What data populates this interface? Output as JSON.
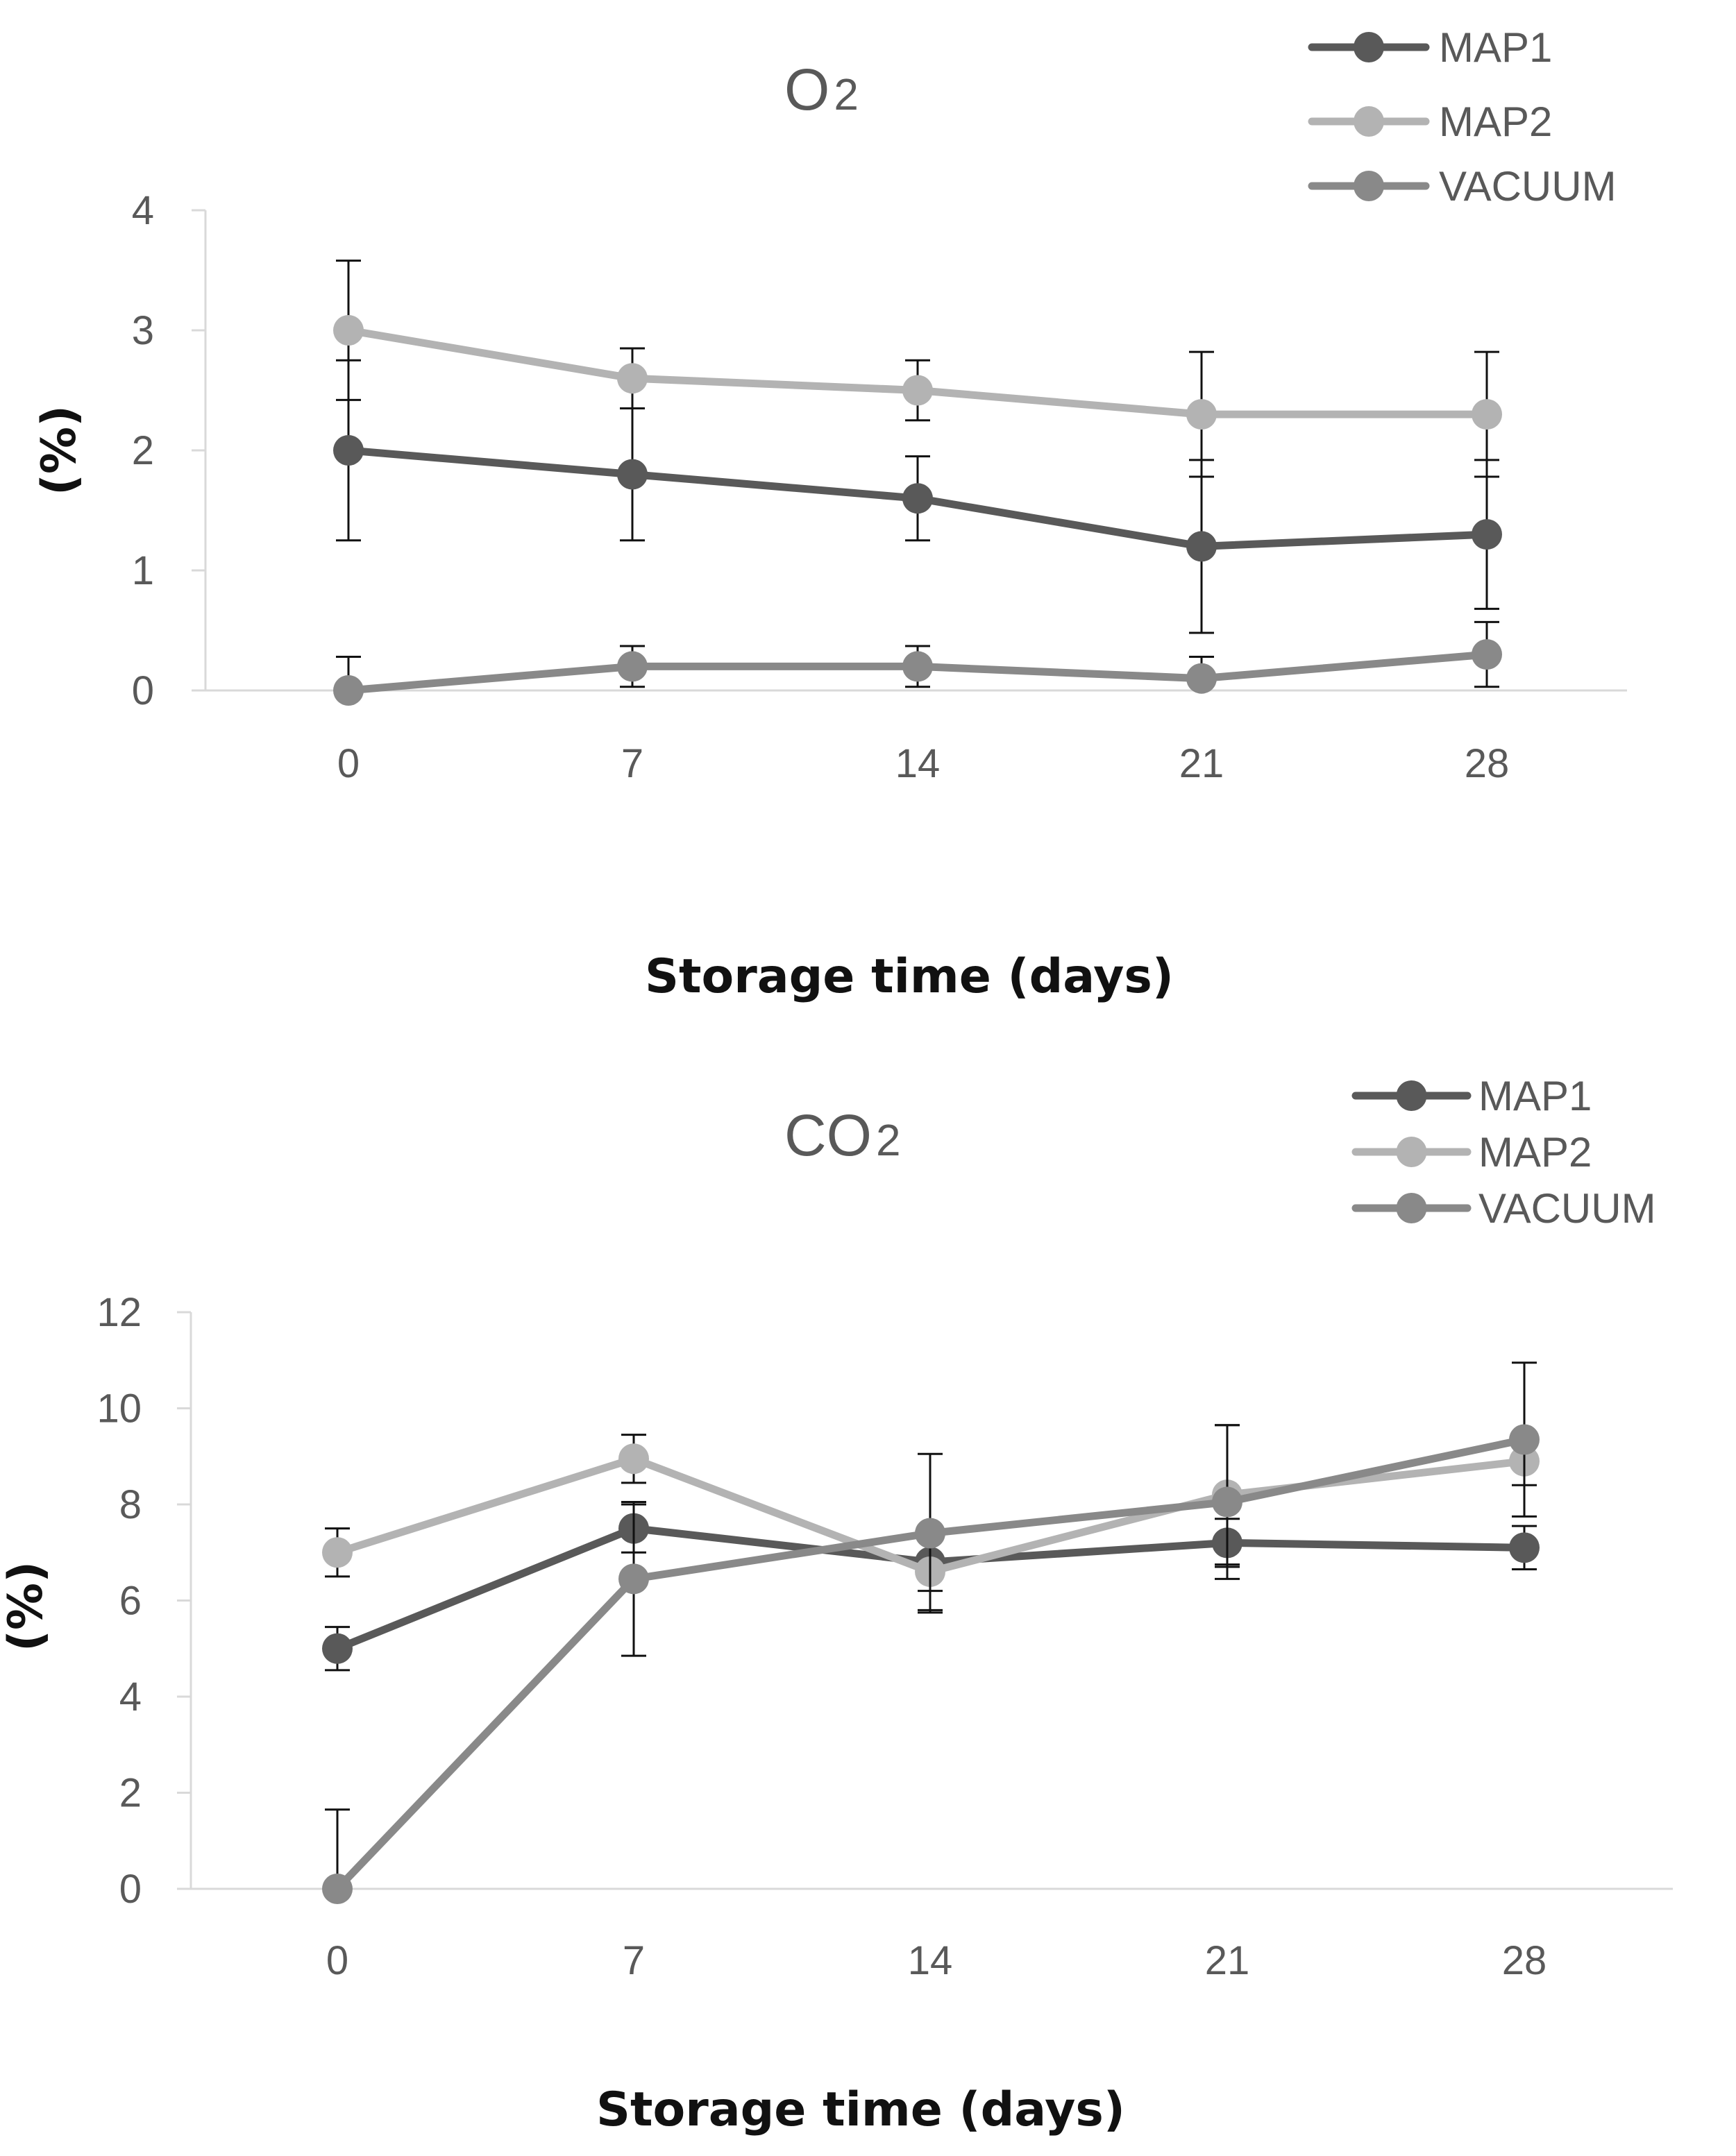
{
  "chart_data": [
    {
      "type": "line",
      "title": "O2",
      "title_main": "O",
      "title_sub": "2",
      "xlabel": "Storage time (days)",
      "ylabel": "(%)",
      "categories": [
        "0",
        "7",
        "14",
        "21",
        "28"
      ],
      "ylim": [
        0,
        4
      ],
      "yticks": [
        0,
        1,
        2,
        3,
        4
      ],
      "legend_position": "top-right",
      "series": [
        {
          "name": "MAP1",
          "color": "#595959",
          "values": [
            2.0,
            1.8,
            1.6,
            1.2,
            1.3
          ],
          "error": [
            0.75,
            0.55,
            0.35,
            0.72,
            0.62
          ]
        },
        {
          "name": "MAP2",
          "color": "#b3b3b3",
          "values": [
            3.0,
            2.6,
            2.5,
            2.3,
            2.3
          ],
          "error": [
            0.58,
            0.25,
            0.25,
            0.52,
            0.52
          ]
        },
        {
          "name": "VACUUM",
          "color": "#898989",
          "values": [
            0.0,
            0.2,
            0.2,
            0.1,
            0.3
          ],
          "error": [
            0.28,
            0.17,
            0.17,
            0.18,
            0.27
          ]
        }
      ]
    },
    {
      "type": "line",
      "title": "CO2",
      "title_main": "CO",
      "title_sub": "2",
      "xlabel": "Storage time (days)",
      "ylabel": "(%)",
      "categories": [
        "0",
        "7",
        "14",
        "21",
        "28"
      ],
      "ylim": [
        0,
        12
      ],
      "yticks": [
        0,
        2,
        4,
        6,
        8,
        10,
        12
      ],
      "legend_position": "top-right",
      "series": [
        {
          "name": "MAP1",
          "color": "#595959",
          "values": [
            5.0,
            7.5,
            6.8,
            7.2,
            7.1
          ],
          "error": [
            0.45,
            0.5,
            0.6,
            0.5,
            0.45
          ]
        },
        {
          "name": "MAP2",
          "color": "#b3b3b3",
          "values": [
            7.0,
            8.95,
            6.6,
            8.2,
            8.9
          ],
          "error": [
            0.5,
            0.5,
            0.8,
            1.45,
            0.5
          ]
        },
        {
          "name": "VACUUM",
          "color": "#898989",
          "values": [
            0.0,
            6.45,
            7.4,
            8.05,
            9.35
          ],
          "error": [
            1.65,
            1.6,
            1.65,
            1.6,
            1.6
          ]
        }
      ]
    }
  ]
}
